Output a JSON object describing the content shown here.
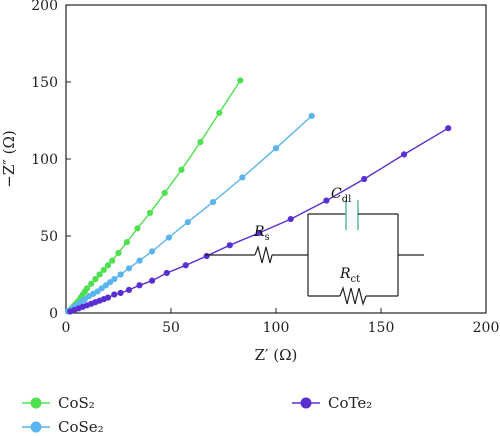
{
  "chart_data": {
    "type": "scatter",
    "xlabel": "Z′ (Ω)",
    "ylabel": "−Z″ (Ω)",
    "xlim": [
      0,
      200
    ],
    "ylim": [
      0,
      200
    ],
    "x_ticks": [
      0,
      50,
      100,
      150,
      200
    ],
    "y_ticks": [
      0,
      50,
      100,
      150,
      200
    ],
    "grid": false,
    "legend_position": "bottom",
    "series": [
      {
        "name": "CoS₂",
        "color": "#4ee04e",
        "x": [
          1,
          2,
          3,
          4,
          5,
          6,
          7,
          8,
          9,
          10,
          12,
          14,
          16,
          18,
          20,
          22,
          25,
          29,
          34,
          40,
          47,
          55,
          64,
          73,
          83
        ],
        "y": [
          1,
          2,
          3.5,
          5,
          6.5,
          8,
          10,
          12,
          14,
          16,
          19,
          22,
          25,
          28,
          31,
          34,
          39,
          46,
          55,
          65,
          78,
          93,
          111,
          130,
          151
        ]
      },
      {
        "name": "CoSe₂",
        "color": "#5ab4ee",
        "x": [
          1,
          2,
          3,
          4,
          5,
          6,
          7,
          8,
          9,
          11,
          13,
          15,
          17,
          19,
          21,
          23,
          26,
          30,
          35,
          41,
          49,
          58,
          70,
          84,
          100,
          117
        ],
        "y": [
          1,
          2,
          3,
          4,
          5,
          6,
          7,
          8,
          9,
          11,
          12.5,
          14,
          16,
          18,
          20,
          22,
          25,
          29,
          34,
          40,
          49,
          59,
          72,
          88,
          107,
          128
        ]
      },
      {
        "name": "CoTe₂",
        "color": "#5a2fd2",
        "x": [
          2,
          4,
          6,
          8,
          10,
          12,
          14,
          16,
          18,
          20,
          23,
          26,
          30,
          35,
          41,
          48,
          57,
          67,
          78,
          92,
          107,
          124,
          142,
          161,
          182
        ],
        "y": [
          1,
          2,
          3,
          4,
          5,
          6,
          7,
          8,
          9,
          10,
          12,
          13,
          15,
          18,
          21,
          26,
          31,
          37,
          44,
          52,
          61,
          73,
          87,
          103,
          120
        ]
      }
    ]
  },
  "circuit": {
    "cdl_main": "C",
    "cdl_sub": "dl",
    "rs_main": "R",
    "rs_sub": "s",
    "rct_main": "R",
    "rct_sub": "ct"
  },
  "colors": {
    "axis": "#222222",
    "circuit": "#222222",
    "capacitor": "#66bb99"
  }
}
